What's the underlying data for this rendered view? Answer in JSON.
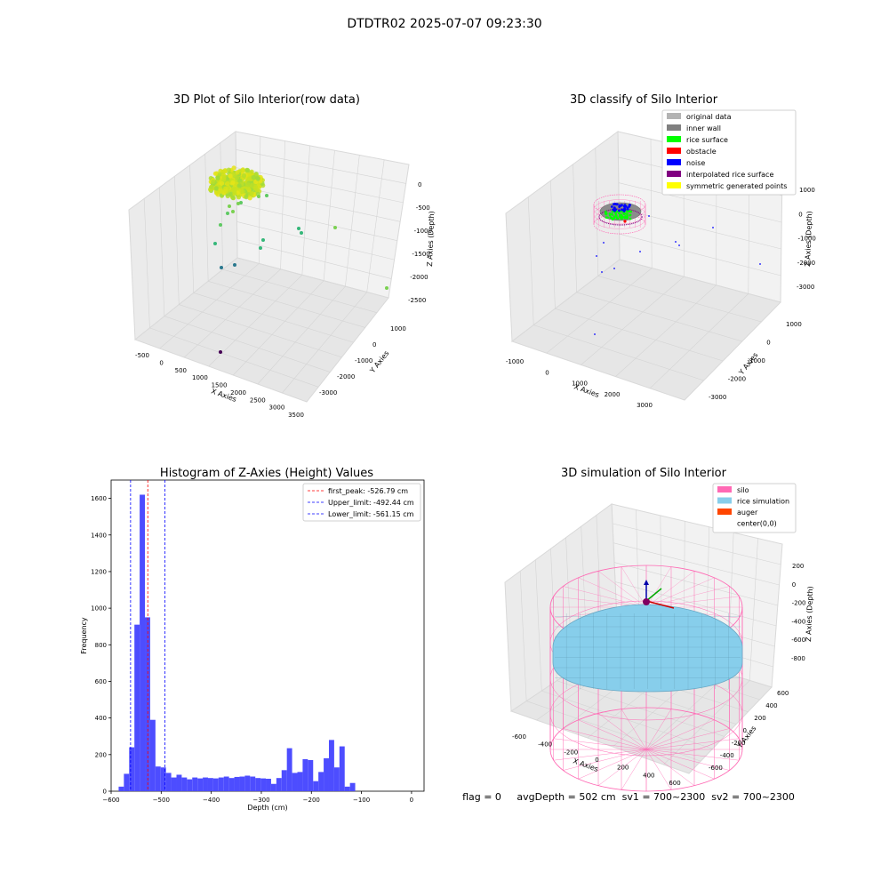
{
  "figure": {
    "suptitle": "DTDTR02 2025-07-07 09:23:30",
    "footer": "flag = 0     avgDepth = 502 cm  sv1 = 700~2300  sv2 = 700~2300"
  },
  "chart_data": [
    {
      "id": "raw",
      "type": "scatter3d",
      "title": "3D Plot of Silo Interior(row data)",
      "xlabel": "X Axies",
      "ylabel": "Y Axies",
      "zlabel": "Z Axies (Depth)",
      "x_ticks": [
        "-500",
        "0",
        "500",
        "1000",
        "1500",
        "2000",
        "2500",
        "3000",
        "3500"
      ],
      "y_ticks": [
        "1000",
        "0",
        "-1000",
        "-2000",
        "-3000"
      ],
      "z_ticks": [
        "0",
        "-500",
        "-1000",
        "-1500",
        "-2000",
        "-2500"
      ]
    },
    {
      "id": "classify",
      "type": "scatter3d",
      "title": "3D classify of Silo Interior",
      "xlabel": "X Axies",
      "ylabel": "Y Axies",
      "zlabel": "Z Axies (Depth)",
      "x_ticks": [
        "-1000",
        "0",
        "1000",
        "2000",
        "3000"
      ],
      "y_ticks": [
        "1000",
        "0",
        "-1000",
        "-2000",
        "-3000"
      ],
      "z_ticks": [
        "1000",
        "0",
        "-1000",
        "-2000",
        "-3000"
      ],
      "legend_position": "top-right",
      "legend": [
        {
          "label": "original data",
          "color": "#b3b3b3"
        },
        {
          "label": "inner wall",
          "color": "#808080"
        },
        {
          "label": "rice surface",
          "color": "#00ff00"
        },
        {
          "label": "obstacle",
          "color": "#ff0000"
        },
        {
          "label": "noise",
          "color": "#0000ff"
        },
        {
          "label": "interpolated rice surface",
          "color": "#800080"
        },
        {
          "label": "symmetric generated points",
          "color": "#ffff00"
        }
      ]
    },
    {
      "id": "histogram",
      "type": "bar",
      "title": "Histogram of Z-Axies (Height) Values",
      "xlabel": "Depth (cm)",
      "ylabel": "Frequency",
      "xlim": [
        -600,
        25
      ],
      "ylim": [
        0,
        1700
      ],
      "x_ticks": [
        -600,
        -500,
        -400,
        -300,
        -200,
        -100,
        0
      ],
      "y_ticks": [
        0,
        200,
        400,
        600,
        800,
        1000,
        1200,
        1400,
        1600
      ],
      "bar_color": "#4d4dff",
      "bin_width": 10.5,
      "bin_start": -585,
      "values": [
        25,
        95,
        240,
        910,
        1620,
        950,
        390,
        135,
        130,
        100,
        75,
        90,
        75,
        65,
        75,
        70,
        75,
        72,
        70,
        75,
        80,
        72,
        78,
        80,
        85,
        80,
        72,
        70,
        68,
        40,
        72,
        115,
        235,
        100,
        105,
        175,
        170,
        55,
        105,
        180,
        280,
        130,
        245,
        25,
        45
      ],
      "lines": [
        {
          "label": "first_peak: -526.79 cm",
          "x": -526.79,
          "color": "#ff0000"
        },
        {
          "label": "Upper_limit: -492.44 cm",
          "x": -492.44,
          "color": "#0000ff"
        },
        {
          "label": "Lower_limit: -561.15 cm",
          "x": -561.15,
          "color": "#0000ff"
        }
      ],
      "legend_position": "top-right"
    },
    {
      "id": "simulation",
      "type": "surface3d",
      "title": "3D simulation of Silo Interior",
      "xlabel": "X Axies",
      "ylabel": "Y Axies",
      "zlabel": "Z Axies (Depth)",
      "x_ticks": [
        "-600",
        "-400",
        "-200",
        "0",
        "200",
        "400",
        "600"
      ],
      "y_ticks": [
        "600",
        "400",
        "200",
        "0",
        "-200",
        "-400",
        "-600"
      ],
      "z_ticks": [
        "200",
        "0",
        "-200",
        "-400",
        "-600",
        "-800"
      ],
      "legend_position": "top-right",
      "legend": [
        {
          "label": "silo",
          "color": "#ff69b4"
        },
        {
          "label": "rice simulation",
          "color": "#87ceeb"
        },
        {
          "label": "auger",
          "color": "#ff4500"
        },
        {
          "label": "center(0,0)",
          "color": ""
        }
      ]
    }
  ]
}
